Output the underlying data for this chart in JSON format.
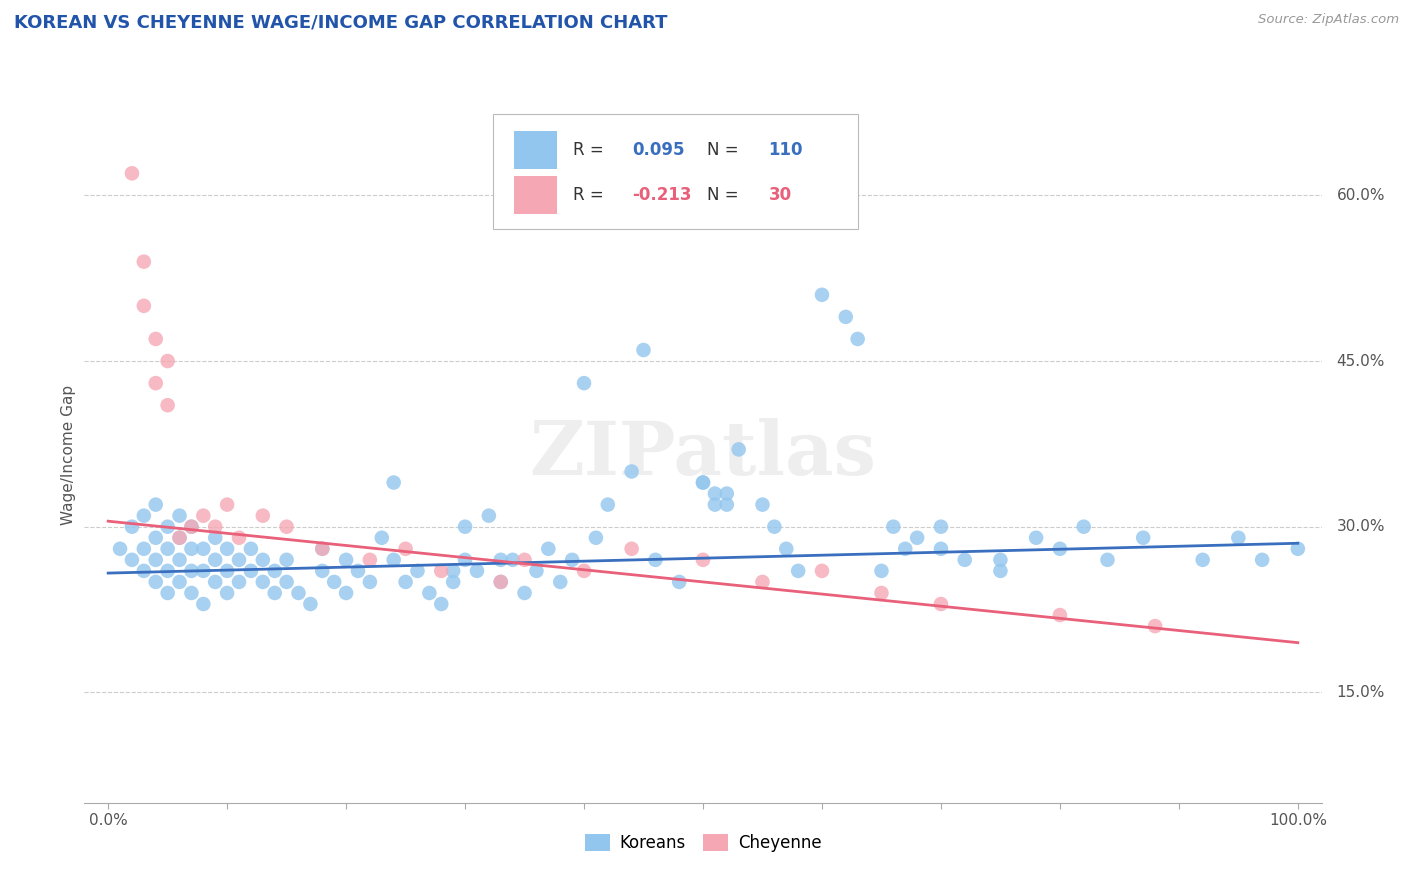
{
  "title": "KOREAN VS CHEYENNE WAGE/INCOME GAP CORRELATION CHART",
  "source_text": "Source: ZipAtlas.com",
  "ylabel": "Wage/Income Gap",
  "xlim": [
    -0.02,
    1.02
  ],
  "ylim": [
    0.05,
    0.68
  ],
  "x_ticks": [
    0.0,
    0.1,
    0.2,
    0.3,
    0.4,
    0.5,
    0.6,
    0.7,
    0.8,
    0.9,
    1.0
  ],
  "y_tick_labels_right": [
    "15.0%",
    "30.0%",
    "45.0%",
    "60.0%"
  ],
  "y_tick_vals_right": [
    0.15,
    0.3,
    0.45,
    0.6
  ],
  "koreans_R": 0.095,
  "koreans_N": 110,
  "cheyenne_R": -0.213,
  "cheyenne_N": 30,
  "korean_color": "#93C6EE",
  "cheyenne_color": "#F5A8B4",
  "korean_line_color": "#3A6FBF",
  "cheyenne_line_color": "#E8607A",
  "legend_korean_label": "Koreans",
  "legend_cheyenne_label": "Cheyenne",
  "background_color": "#FFFFFF",
  "grid_color": "#CCCCCC",
  "title_color": "#2255AA",
  "watermark_text": "ZIPatlas",
  "koreans_x": [
    0.01,
    0.02,
    0.02,
    0.03,
    0.03,
    0.03,
    0.04,
    0.04,
    0.04,
    0.04,
    0.05,
    0.05,
    0.05,
    0.05,
    0.06,
    0.06,
    0.06,
    0.06,
    0.07,
    0.07,
    0.07,
    0.07,
    0.08,
    0.08,
    0.08,
    0.09,
    0.09,
    0.09,
    0.1,
    0.1,
    0.1,
    0.11,
    0.11,
    0.12,
    0.12,
    0.13,
    0.13,
    0.14,
    0.14,
    0.15,
    0.15,
    0.16,
    0.17,
    0.18,
    0.18,
    0.19,
    0.2,
    0.2,
    0.21,
    0.22,
    0.23,
    0.24,
    0.24,
    0.25,
    0.26,
    0.27,
    0.28,
    0.29,
    0.29,
    0.3,
    0.3,
    0.31,
    0.32,
    0.33,
    0.33,
    0.34,
    0.35,
    0.36,
    0.37,
    0.38,
    0.39,
    0.4,
    0.41,
    0.42,
    0.44,
    0.45,
    0.46,
    0.48,
    0.5,
    0.51,
    0.52,
    0.53,
    0.55,
    0.56,
    0.57,
    0.58,
    0.6,
    0.62,
    0.63,
    0.65,
    0.67,
    0.7,
    0.72,
    0.75,
    0.78,
    0.8,
    0.82,
    0.84,
    0.87,
    0.92,
    0.95,
    0.97,
    0.5,
    0.51,
    0.52,
    0.66,
    0.68,
    0.7,
    0.75,
    1.0
  ],
  "koreans_y": [
    0.28,
    0.27,
    0.3,
    0.26,
    0.28,
    0.31,
    0.25,
    0.27,
    0.29,
    0.32,
    0.24,
    0.26,
    0.28,
    0.3,
    0.25,
    0.27,
    0.29,
    0.31,
    0.24,
    0.26,
    0.28,
    0.3,
    0.23,
    0.26,
    0.28,
    0.25,
    0.27,
    0.29,
    0.24,
    0.26,
    0.28,
    0.25,
    0.27,
    0.26,
    0.28,
    0.25,
    0.27,
    0.24,
    0.26,
    0.25,
    0.27,
    0.24,
    0.23,
    0.26,
    0.28,
    0.25,
    0.27,
    0.24,
    0.26,
    0.25,
    0.29,
    0.34,
    0.27,
    0.25,
    0.26,
    0.24,
    0.23,
    0.25,
    0.26,
    0.27,
    0.3,
    0.26,
    0.31,
    0.25,
    0.27,
    0.27,
    0.24,
    0.26,
    0.28,
    0.25,
    0.27,
    0.43,
    0.29,
    0.32,
    0.35,
    0.46,
    0.27,
    0.25,
    0.34,
    0.32,
    0.33,
    0.37,
    0.32,
    0.3,
    0.28,
    0.26,
    0.51,
    0.49,
    0.47,
    0.26,
    0.28,
    0.3,
    0.27,
    0.26,
    0.29,
    0.28,
    0.3,
    0.27,
    0.29,
    0.27,
    0.29,
    0.27,
    0.34,
    0.33,
    0.32,
    0.3,
    0.29,
    0.28,
    0.27,
    0.28
  ],
  "cheyenne_x": [
    0.02,
    0.03,
    0.03,
    0.04,
    0.04,
    0.05,
    0.05,
    0.06,
    0.07,
    0.08,
    0.09,
    0.1,
    0.11,
    0.13,
    0.15,
    0.18,
    0.22,
    0.25,
    0.28,
    0.33,
    0.35,
    0.4,
    0.44,
    0.5,
    0.55,
    0.6,
    0.65,
    0.7,
    0.8,
    0.88
  ],
  "cheyenne_y": [
    0.62,
    0.5,
    0.54,
    0.47,
    0.43,
    0.45,
    0.41,
    0.29,
    0.3,
    0.31,
    0.3,
    0.32,
    0.29,
    0.31,
    0.3,
    0.28,
    0.27,
    0.28,
    0.26,
    0.25,
    0.27,
    0.26,
    0.28,
    0.27,
    0.25,
    0.26,
    0.24,
    0.23,
    0.22,
    0.21
  ],
  "korean_trendline_x": [
    0.0,
    1.0
  ],
  "korean_trendline_y": [
    0.258,
    0.285
  ],
  "cheyenne_trendline_x": [
    0.0,
    1.0
  ],
  "cheyenne_trendline_y": [
    0.305,
    0.195
  ]
}
